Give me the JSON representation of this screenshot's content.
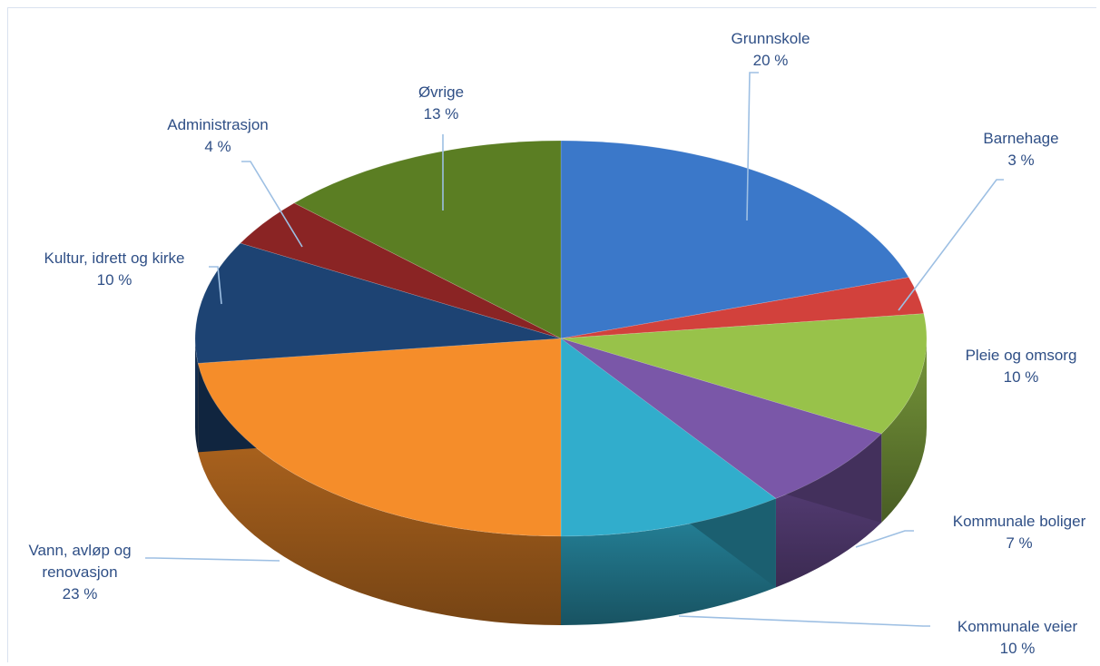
{
  "chart_data": {
    "type": "pie",
    "title": "",
    "legend": "none",
    "slices": [
      {
        "label": "Grunnskole",
        "value": 20,
        "value_label": "20 %",
        "color": "#3b78c9"
      },
      {
        "label": "Barnehage",
        "value": 3,
        "value_label": "3 %",
        "color": "#d2413c"
      },
      {
        "label": "Pleie og omsorg",
        "value": 10,
        "value_label": "10 %",
        "color": "#98c24a"
      },
      {
        "label": "Kommunale boliger",
        "value": 7,
        "value_label": "7 %",
        "color": "#7a57a8"
      },
      {
        "label": "Kommunale veier",
        "value": 10,
        "value_label": "10 %",
        "color": "#31adcc"
      },
      {
        "label": "Vann, avløp og renovasjon",
        "value": 23,
        "value_label": "23 %",
        "color": "#f58d2a"
      },
      {
        "label": "Kultur, idrett og kirke",
        "value": 10,
        "value_label": "10 %",
        "color": "#1d4373"
      },
      {
        "label": "Administrasjon",
        "value": 4,
        "value_label": "4 %",
        "color": "#8a2424"
      },
      {
        "label": "Øvrige",
        "value": 13,
        "value_label": "13 %",
        "color": "#5b7e23"
      }
    ]
  }
}
